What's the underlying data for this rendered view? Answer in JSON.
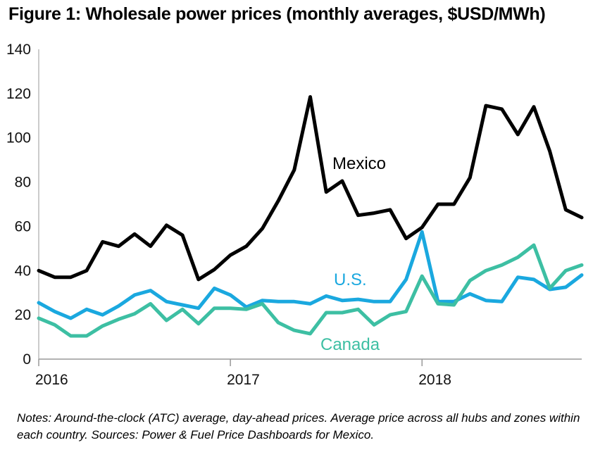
{
  "title": "Figure 1: Wholesale power prices (monthly averages, $USD/MWh)",
  "notes": "Notes: Around-the-clock (ATC) average, day-ahead prices. Average price across all hubs and zones within each country. Sources: Power & Fuel Price Dashboards for Mexico.",
  "chart_data": {
    "type": "line",
    "title": "Figure 1: Wholesale power prices (monthly averages, $USD/MWh)",
    "xlabel": "",
    "ylabel": "",
    "x": [
      "2016-01",
      "2016-02",
      "2016-03",
      "2016-04",
      "2016-05",
      "2016-06",
      "2016-07",
      "2016-08",
      "2016-09",
      "2016-10",
      "2016-11",
      "2016-12",
      "2017-01",
      "2017-02",
      "2017-03",
      "2017-04",
      "2017-05",
      "2017-06",
      "2017-07",
      "2017-08",
      "2017-09",
      "2017-10",
      "2017-11",
      "2017-12",
      "2018-01",
      "2018-02",
      "2018-03",
      "2018-04",
      "2018-05",
      "2018-06",
      "2018-07",
      "2018-08",
      "2018-09",
      "2018-10",
      "2018-11"
    ],
    "xticks": [
      {
        "label": "2016",
        "month": 0
      },
      {
        "label": "2017",
        "month": 12
      },
      {
        "label": "2018",
        "month": 24
      }
    ],
    "ylim": [
      0,
      140
    ],
    "yticks": [
      0,
      20,
      40,
      60,
      80,
      100,
      120,
      140
    ],
    "grid": false,
    "legend": "inline labels",
    "series": [
      {
        "name": "Mexico",
        "color": "#000000",
        "values": [
          40,
          37,
          37,
          40,
          53,
          51,
          56.5,
          51,
          60.5,
          56,
          36,
          40.5,
          47,
          51,
          59,
          71.5,
          85.5,
          118.5,
          75.5,
          80.5,
          65,
          66,
          67.5,
          54.5,
          59.5,
          70,
          70,
          82,
          114.5,
          113,
          101.5,
          114,
          94,
          67.5,
          64
        ]
      },
      {
        "name": "U.S.",
        "color": "#1aa8df",
        "values": [
          25.5,
          21.5,
          18.5,
          22.5,
          20,
          24,
          29,
          31,
          26,
          24.5,
          23,
          32,
          29,
          23.5,
          26.5,
          26,
          26,
          25,
          28.5,
          26.5,
          27,
          26,
          26,
          36,
          57.5,
          26,
          26,
          29.5,
          26.5,
          26,
          37,
          36,
          31.5,
          32.5,
          38
        ]
      },
      {
        "name": "Canada",
        "color": "#3dbfa3",
        "values": [
          18.5,
          15.5,
          10.5,
          10.5,
          15,
          18,
          20.5,
          25,
          17.5,
          22.5,
          16,
          23,
          23,
          22.5,
          25,
          16.5,
          13,
          11.5,
          21,
          21,
          22.5,
          15.5,
          20,
          21.5,
          37.5,
          25,
          24.5,
          35.5,
          40,
          42.5,
          46,
          51.5,
          32,
          40,
          42.5
        ]
      }
    ]
  },
  "labels": {
    "mexico": "Mexico",
    "us": "U.S.",
    "canada": "Canada"
  }
}
